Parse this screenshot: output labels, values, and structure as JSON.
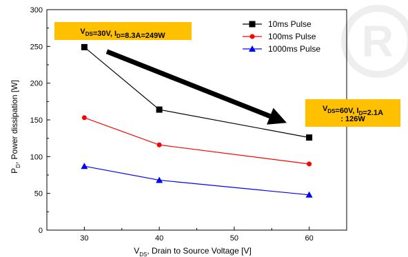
{
  "chart_data": {
    "type": "line",
    "xlabel": {
      "main": "V",
      "sub": "DS",
      "rest": ", Drain to Source Voltage [V]"
    },
    "ylabel": {
      "main": "P",
      "sub": "D",
      "rest": ", Power dissipation [W]"
    },
    "xlim": [
      25,
      65
    ],
    "ylim": [
      0,
      300
    ],
    "xticks": [
      30,
      40,
      50,
      60
    ],
    "yticks": [
      0,
      50,
      100,
      150,
      200,
      250,
      300
    ],
    "grid": false,
    "legend_position": "top-right",
    "series": [
      {
        "name": "10ms Pulse",
        "color": "#000000",
        "marker": "square",
        "x": [
          30,
          40,
          60
        ],
        "y": [
          249,
          164,
          126
        ]
      },
      {
        "name": "100ms Pulse",
        "color": "#ff0000",
        "marker": "circle",
        "x": [
          30,
          40,
          60
        ],
        "y": [
          153,
          116,
          90
        ]
      },
      {
        "name": "1000ms Pulse",
        "color": "#0000ff",
        "marker": "triangle",
        "x": [
          30,
          40,
          60
        ],
        "y": [
          87,
          68,
          48
        ]
      }
    ],
    "annotations": [
      {
        "parts": [
          {
            "t": "V"
          },
          {
            "t": "DS",
            "sub": true
          },
          {
            "t": "=30V, I"
          },
          {
            "t": "D",
            "sub": true
          },
          {
            "t": "=8.3A=249W"
          }
        ],
        "background": "#ffc000"
      },
      {
        "parts": [
          {
            "t": "V"
          },
          {
            "t": "DS",
            "sub": true
          },
          {
            "t": "=60V, I"
          },
          {
            "t": "D",
            "sub": true
          },
          {
            "t": "=2.1A"
          }
        ],
        "line2": ": 126W",
        "background": "#ffc000"
      }
    ],
    "arrow": {
      "from": [
        33,
        243
      ],
      "to": [
        57,
        146
      ]
    }
  },
  "colors": {
    "callout_bg": "#ffc000",
    "watermark": "#eeeeee"
  },
  "watermark": {
    "text": "R"
  }
}
